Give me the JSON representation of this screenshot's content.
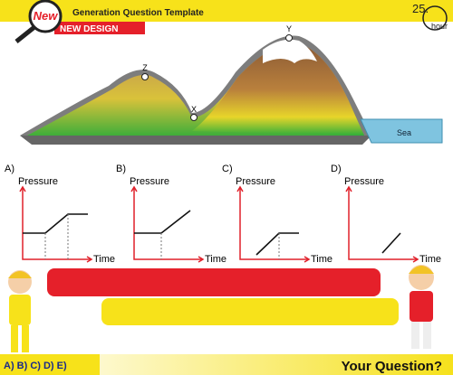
{
  "header": {
    "badge": "New",
    "title": "Generation Question Template",
    "subtitle": "NEW DESIGN",
    "timer": "25.",
    "timer_unit": "hour"
  },
  "figure": {
    "points": [
      "Z",
      "X",
      "Y"
    ],
    "sea": "Sea"
  },
  "options": [
    {
      "label": "A)",
      "y_axis": "Pressure",
      "x_axis": "Time"
    },
    {
      "label": "B)",
      "y_axis": "Pressure",
      "x_axis": "Time"
    },
    {
      "label": "C)",
      "y_axis": "Pressure",
      "x_axis": "Time"
    },
    {
      "label": "D)",
      "y_axis": "Pressure",
      "x_axis": "Time"
    }
  ],
  "footer": {
    "choices": "A) B) C) D) E)",
    "question": "Your Question?"
  }
}
